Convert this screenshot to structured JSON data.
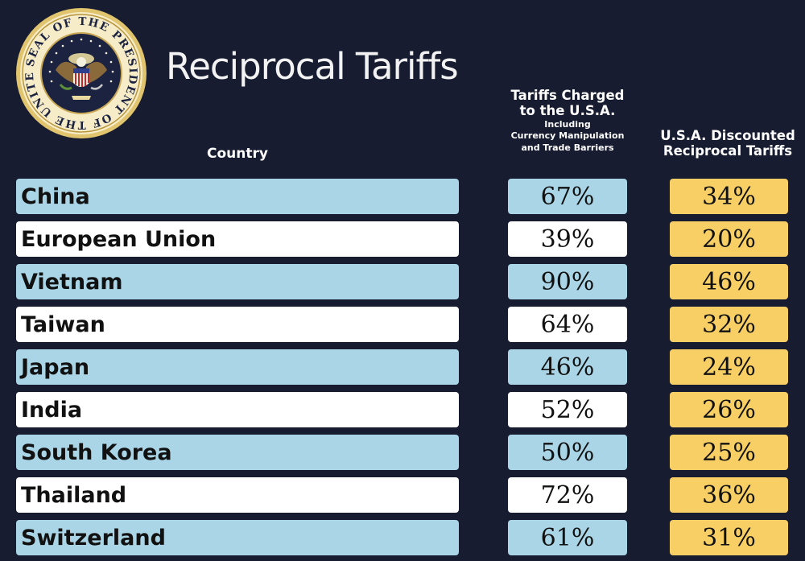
{
  "title": "Reciprocal Tariffs",
  "seal": {
    "text": "SEAL OF THE PRESIDENT OF THE UNITED STATES"
  },
  "headers": {
    "country": "Country",
    "charged_line1": "Tariffs Charged",
    "charged_line2": "to the U.S.A.",
    "charged_sub1": "Including",
    "charged_sub2": "Currency Manipulation",
    "charged_sub3": "and Trade Barriers",
    "discount_line1": "U.S.A. Discounted",
    "discount_line2": "Reciprocal Tariffs"
  },
  "rows": [
    {
      "country": "China",
      "charged": "67%",
      "discounted": "34%"
    },
    {
      "country": "European Union",
      "charged": "39%",
      "discounted": "20%"
    },
    {
      "country": "Vietnam",
      "charged": "90%",
      "discounted": "46%"
    },
    {
      "country": "Taiwan",
      "charged": "64%",
      "discounted": "32%"
    },
    {
      "country": "Japan",
      "charged": "46%",
      "discounted": "24%"
    },
    {
      "country": "India",
      "charged": "52%",
      "discounted": "26%"
    },
    {
      "country": "South Korea",
      "charged": "50%",
      "discounted": "25%"
    },
    {
      "country": "Thailand",
      "charged": "72%",
      "discounted": "36%"
    },
    {
      "country": "Switzerland",
      "charged": "61%",
      "discounted": "31%"
    }
  ],
  "colors": {
    "background": "#181c30",
    "row_blue": "#a9d5e6",
    "row_white": "#ffffff",
    "discount_gold": "#f7cf65",
    "seal_gold": "#d9b65a"
  }
}
